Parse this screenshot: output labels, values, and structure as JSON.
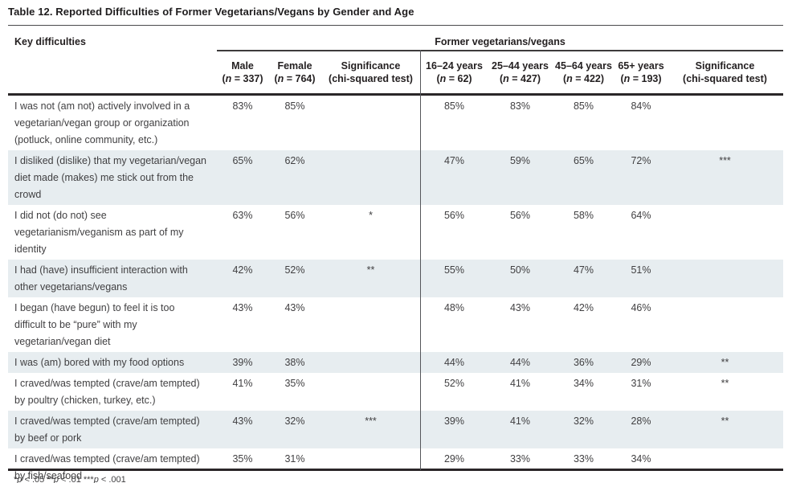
{
  "title": "Table 12. Reported Difficulties of Former Vegetarians/Vegans by Gender and Age",
  "table": {
    "row_header": "Key difficulties",
    "group_header": "Former vegetarians/vegans",
    "columns": [
      {
        "label": "Male",
        "sub": "(n = 337)"
      },
      {
        "label": "Female",
        "sub": "(n = 764)"
      },
      {
        "label": "Significance",
        "sub": "(chi-squared test)"
      },
      {
        "label": "16–24 years",
        "sub": "(n = 62)"
      },
      {
        "label": "25–44 years",
        "sub": "(n = 427)"
      },
      {
        "label": "45–64 years",
        "sub": "(n = 422)"
      },
      {
        "label": "65+ years",
        "sub": "(n = 193)"
      },
      {
        "label": "Significance",
        "sub": "(chi-squared test)"
      }
    ],
    "rows": [
      {
        "label": "I was not (am not) actively involved in a vegetarian/vegan group or organization (potluck, online community, etc.)",
        "values": [
          "83%",
          "85%",
          "",
          "85%",
          "83%",
          "85%",
          "84%",
          ""
        ],
        "shaded": false
      },
      {
        "label": "I disliked (dislike) that my vegetarian/vegan diet made (makes) me stick out from the crowd",
        "values": [
          "65%",
          "62%",
          "",
          "47%",
          "59%",
          "65%",
          "72%",
          "***"
        ],
        "shaded": true
      },
      {
        "label": "I did not (do not) see vegetarianism/veganism as part of my identity",
        "values": [
          "63%",
          "56%",
          "*",
          "56%",
          "56%",
          "58%",
          "64%",
          ""
        ],
        "shaded": false
      },
      {
        "label": "I had (have) insufficient interaction with other vegetarians/vegans",
        "values": [
          "42%",
          "52%",
          "**",
          "55%",
          "50%",
          "47%",
          "51%",
          ""
        ],
        "shaded": true
      },
      {
        "label": "I began (have begun) to feel it is too difficult to be “pure” with my vegetarian/vegan diet",
        "values": [
          "43%",
          "43%",
          "",
          "48%",
          "43%",
          "42%",
          "46%",
          ""
        ],
        "shaded": false
      },
      {
        "label": "I was (am) bored with my food options",
        "values": [
          "39%",
          "38%",
          "",
          "44%",
          "44%",
          "36%",
          "29%",
          "**"
        ],
        "shaded": true
      },
      {
        "label": "I craved/was tempted (crave/am tempted) by poultry (chicken, turkey, etc.)",
        "values": [
          "41%",
          "35%",
          "",
          "52%",
          "41%",
          "34%",
          "31%",
          "**"
        ],
        "shaded": false
      },
      {
        "label": "I craved/was tempted (crave/am tempted) by beef or pork",
        "values": [
          "43%",
          "32%",
          "***",
          "39%",
          "41%",
          "32%",
          "28%",
          "**"
        ],
        "shaded": true
      },
      {
        "label": "I craved/was tempted (crave/am tempted) by fish/seafood",
        "values": [
          "35%",
          "31%",
          "",
          "29%",
          "33%",
          "33%",
          "34%",
          ""
        ],
        "shaded": false
      }
    ],
    "footnote": "*p < .05 **p < .01 ***p < .001"
  },
  "colors": {
    "row_shade": "#e7edf0",
    "rule_dark": "#2a2628",
    "body_text": "#414042"
  }
}
